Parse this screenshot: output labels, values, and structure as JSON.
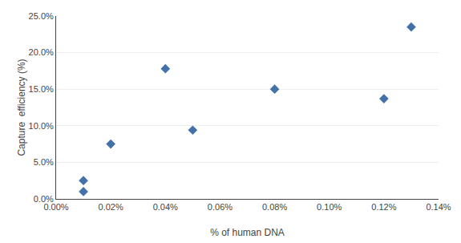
{
  "chart_data": {
    "type": "scatter",
    "xlabel": "% of human DNA",
    "ylabel": "Capture  efficiency (%)",
    "x": [
      0.0001,
      0.0001,
      0.0002,
      0.0004,
      0.0005,
      0.0008,
      0.0012,
      0.0013
    ],
    "values": [
      0.01,
      0.025,
      0.075,
      0.178,
      0.094,
      0.15,
      0.137,
      0.235
    ],
    "color": "#4472a8",
    "marker": "diamond",
    "xlim": [
      0,
      0.0014
    ],
    "ylim": [
      0,
      0.25
    ],
    "xticks": [
      {
        "value": 0.0,
        "label": "0.00%"
      },
      {
        "value": 0.0002,
        "label": "0.02%"
      },
      {
        "value": 0.0004,
        "label": "0.04%"
      },
      {
        "value": 0.0006,
        "label": "0.06%"
      },
      {
        "value": 0.0008,
        "label": "0.08%"
      },
      {
        "value": 0.001,
        "label": "0.10%"
      },
      {
        "value": 0.0012,
        "label": "0.12%"
      },
      {
        "value": 0.0014,
        "label": "0.14%"
      }
    ],
    "yticks": [
      {
        "value": 0.0,
        "label": "0.0%"
      },
      {
        "value": 0.05,
        "label": "5.0%"
      },
      {
        "value": 0.1,
        "label": "10.0%"
      },
      {
        "value": 0.15,
        "label": "15.0%"
      },
      {
        "value": 0.2,
        "label": "20.0%"
      },
      {
        "value": 0.25,
        "label": "25.0%"
      }
    ],
    "grid": "y"
  }
}
